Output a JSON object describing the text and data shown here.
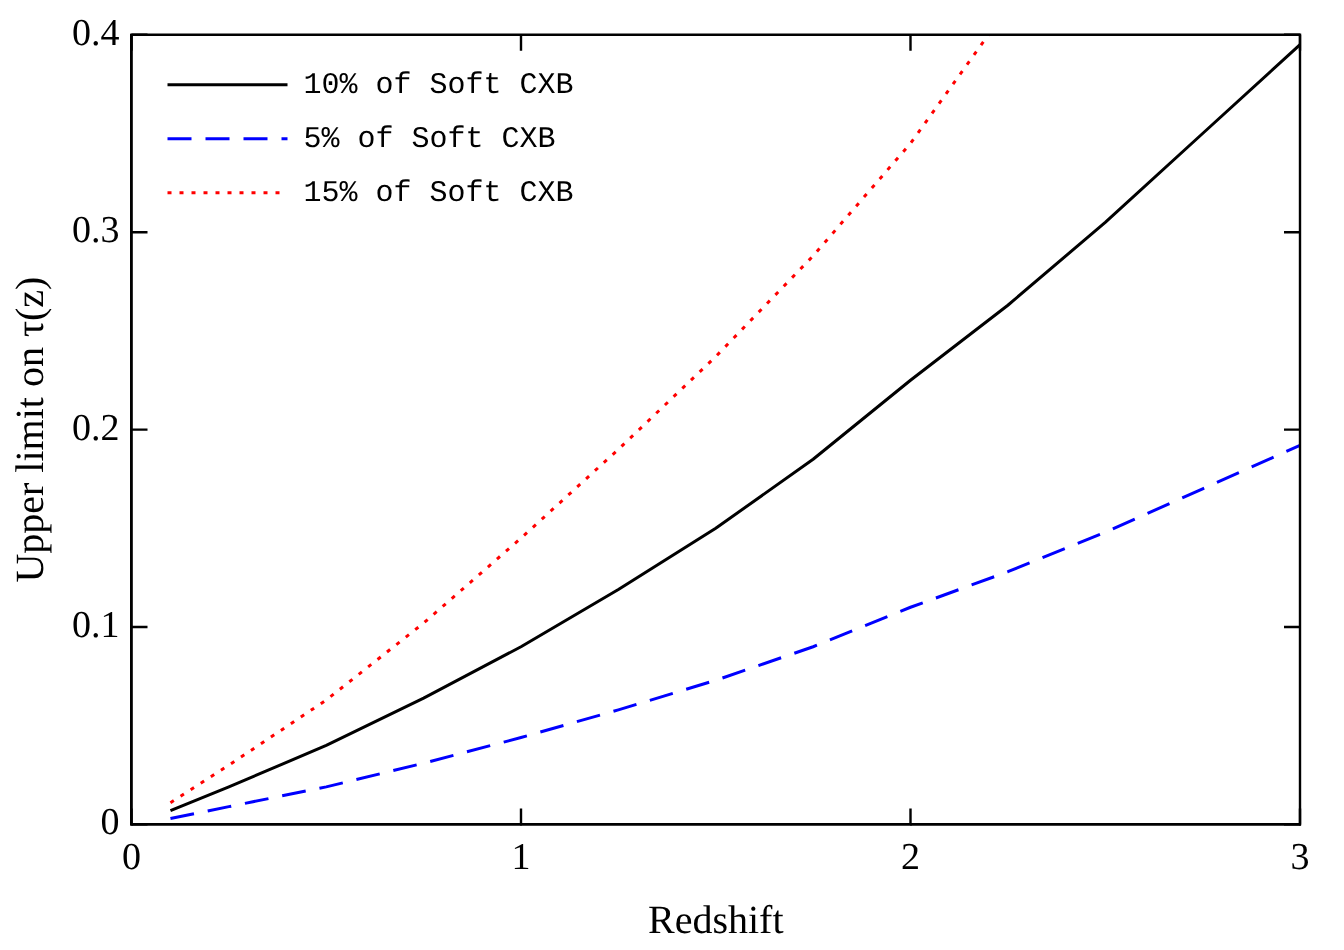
{
  "chart_data": {
    "type": "line",
    "xlabel": "Redshift",
    "ylabel": "Upper limit on τ(z)",
    "xlim": [
      0,
      3
    ],
    "xticks": [
      0,
      1,
      2,
      3
    ],
    "ylim": [
      0,
      0.4
    ],
    "yticks": [
      0,
      0.1,
      0.2,
      0.3,
      0.4
    ],
    "grid": false,
    "legend": "top left",
    "marker": "none",
    "series": [
      {
        "name": "10% of Soft CXB",
        "color": "#000000",
        "line_style": "solid",
        "x": [
          0.1,
          0.25,
          0.5,
          0.75,
          1,
          1.25,
          1.5,
          1.75,
          2,
          2.25,
          2.5,
          2.75,
          3
        ],
        "values": [
          0.007,
          0.019,
          0.04,
          0.064,
          0.09,
          0.119,
          0.15,
          0.185,
          0.225,
          0.263,
          0.305,
          0.35,
          0.395
        ]
      },
      {
        "name": "5% of Soft CXB",
        "color": "#0000ff",
        "line_style": "dashed",
        "x": [
          0.1,
          0.25,
          0.5,
          0.75,
          1,
          1.25,
          1.5,
          1.75,
          2,
          2.25,
          2.5,
          2.75,
          3
        ],
        "values": [
          0.003,
          0.009,
          0.019,
          0.031,
          0.044,
          0.058,
          0.073,
          0.09,
          0.11,
          0.128,
          0.148,
          0.17,
          0.192
        ]
      },
      {
        "name": "15% of Soft CXB",
        "color": "#ff0000",
        "line_style": "dotted",
        "x": [
          0.1,
          0.25,
          0.5,
          0.75,
          1,
          1.25,
          1.5,
          1.75,
          2,
          2.2
        ],
        "values": [
          0.011,
          0.03,
          0.063,
          0.102,
          0.145,
          0.19,
          0.237,
          0.288,
          0.345,
          0.4
        ]
      }
    ]
  }
}
